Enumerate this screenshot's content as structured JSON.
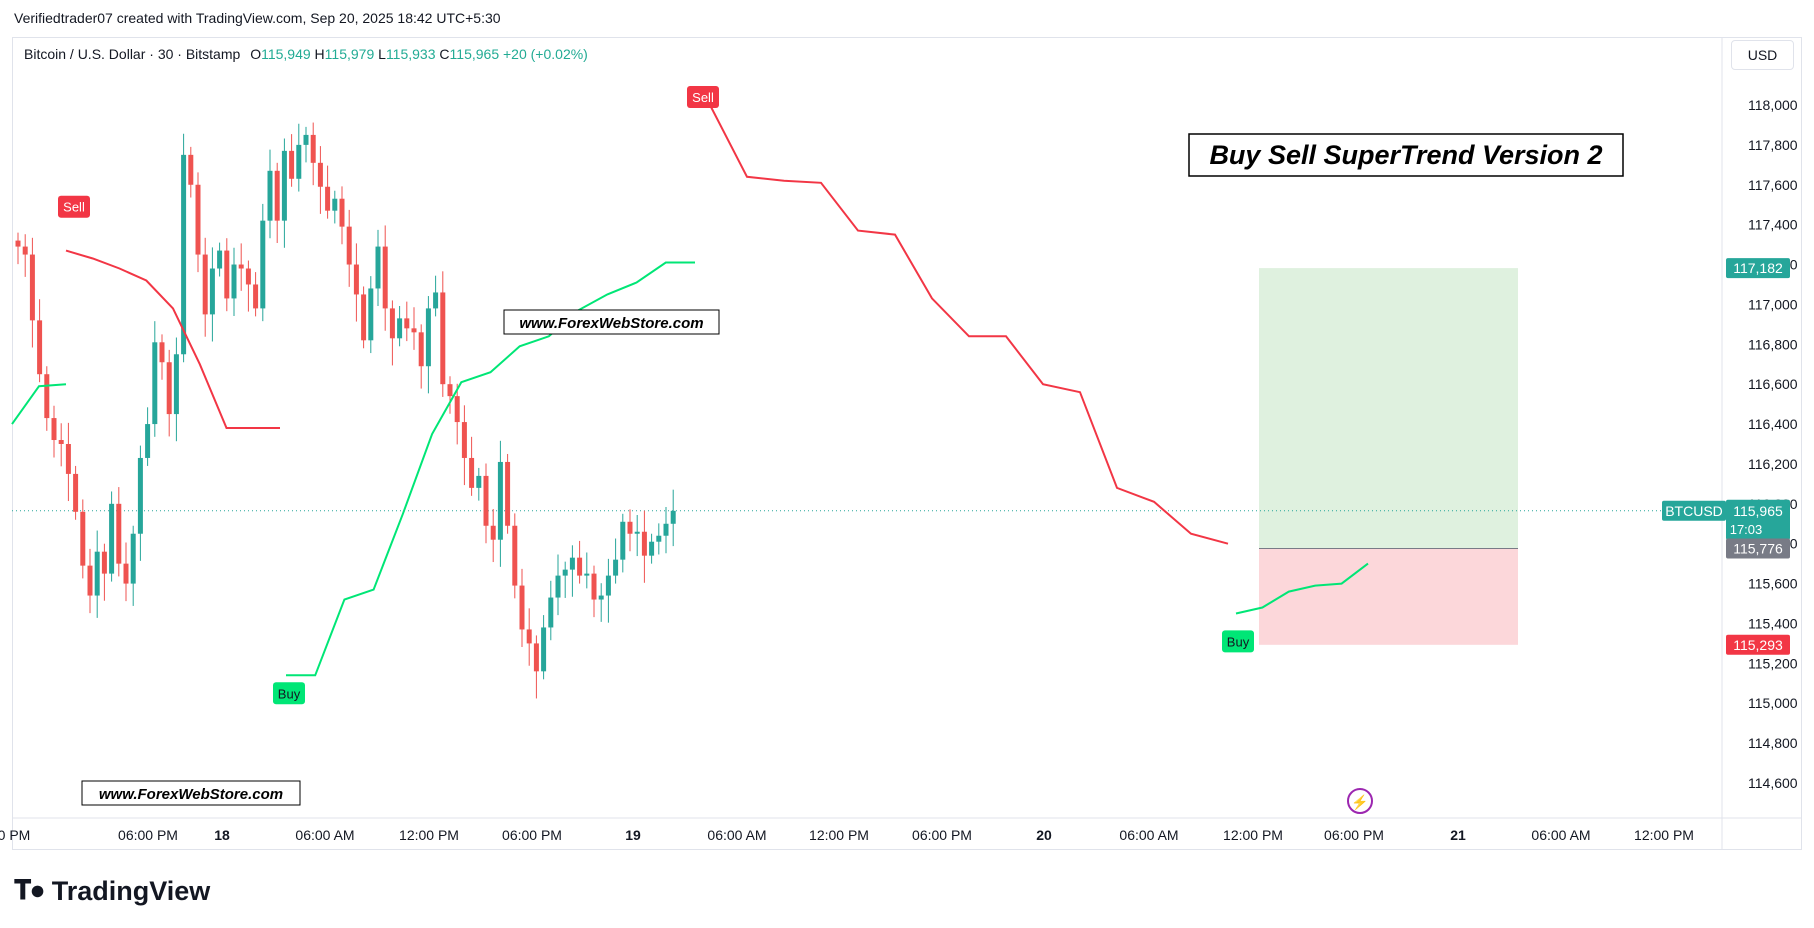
{
  "credit": "Verifiedtrader07 created with TradingView.com, Sep 20, 2025 18:42 UTC+5:30",
  "legend": {
    "symbol": "Bitcoin / U.S. Dollar · 30 · Bitstamp",
    "o_label": "O",
    "o": "115,949",
    "h_label": "H",
    "h": "115,979",
    "l_label": "L",
    "l": "115,933",
    "c_label": "C",
    "c": "115,965",
    "change": "+20 (+0.02%)"
  },
  "currency_button": "USD",
  "title_box": "Buy Sell SuperTrend Version 2",
  "watermarks": [
    "www.ForexWebStore.com",
    "www.ForexWebStore.com"
  ],
  "signals": [
    {
      "label": "Sell",
      "type": "sell"
    },
    {
      "label": "Buy",
      "type": "buy"
    },
    {
      "label": "Sell",
      "type": "sell"
    },
    {
      "label": "Buy",
      "type": "buy"
    }
  ],
  "price_tags": {
    "target": "117,182",
    "symbol_tag": "BTCUSD",
    "last": "115,965",
    "countdown": "17:03",
    "entry": "115,776",
    "stop": "115,293"
  },
  "colors": {
    "up": "#26a69a",
    "down": "#ef5350",
    "st_up": "#00e676",
    "st_down": "#f23645",
    "profit_zone": "#c8e6c9",
    "loss_zone": "#f8bbd0"
  },
  "footer_brand": "TradingView",
  "chart_data": {
    "type": "candlestick",
    "title": "Buy Sell SuperTrend Version 2",
    "symbol": "BTCUSD",
    "interval": "30",
    "y_ticks": [
      "118,000",
      "117,800",
      "117,600",
      "117,400",
      "117,200",
      "117,000",
      "116,800",
      "116,600",
      "116,400",
      "116,200",
      "116,000",
      "115,800",
      "115,600",
      "115,400",
      "115,200",
      "115,000",
      "114,800",
      "114,600"
    ],
    "x_ticks": [
      "0 PM",
      "06:00 PM",
      "18",
      "06:00 AM",
      "12:00 PM",
      "06:00 PM",
      "19",
      "06:00 AM",
      "12:00 PM",
      "06:00 PM",
      "20",
      "06:00 AM",
      "12:00 PM",
      "06:00 PM",
      "21",
      "06:00 AM",
      "12:00 PM"
    ],
    "x_ticks_bold": [
      "18",
      "19",
      "20",
      "21"
    ],
    "ylim": [
      114450,
      118300
    ],
    "close_path": [
      117290,
      117250,
      116920,
      116650,
      116430,
      116320,
      116300,
      116150,
      115960,
      115690,
      115540,
      115760,
      115650,
      116000,
      115700,
      115600,
      115850,
      116230,
      116400,
      116810,
      116710,
      116450,
      116750,
      117750,
      117600,
      117250,
      116950,
      117180,
      117270,
      117030,
      117200,
      117180,
      117100,
      116980,
      117420,
      117670,
      117420,
      117770,
      117630,
      117800,
      117850,
      117710,
      117590,
      117470,
      117530,
      117390,
      117200,
      117050,
      116820,
      117080,
      117290,
      116980,
      116830,
      116930,
      116880,
      116860,
      116690,
      116980,
      117060,
      116600,
      116540,
      116410,
      116230,
      116080,
      116140,
      115890,
      115820,
      116210,
      115890,
      115590,
      115370,
      115300,
      115160,
      115380,
      115530,
      115640,
      115670,
      115730,
      115640,
      115650,
      115520,
      115540,
      115640,
      115720,
      115910,
      115850,
      115860,
      115740,
      115810,
      115840,
      115900,
      115965
    ],
    "supertrend_up_1": [
      116400,
      116590,
      116600
    ],
    "supertrend_down_1": [
      117270,
      117230,
      117180,
      117120,
      116980,
      116700,
      116380,
      116380,
      116380
    ],
    "supertrend_up_2": [
      115140,
      115140,
      115520,
      115570,
      115950,
      116350,
      116610,
      116660,
      116790,
      116840,
      116970,
      117050,
      117110,
      117210,
      117210
    ],
    "supertrend_down_2": [
      118000,
      117640,
      117620,
      117610,
      117370,
      117350,
      117030,
      116840,
      116840,
      116600,
      116560,
      116080,
      116010,
      115850,
      115800
    ],
    "supertrend_up_3": [
      115450,
      115480,
      115560,
      115590,
      115600,
      115700
    ],
    "position": {
      "target": 117182,
      "entry": 115776,
      "stop": 115293,
      "last": 115965
    }
  }
}
